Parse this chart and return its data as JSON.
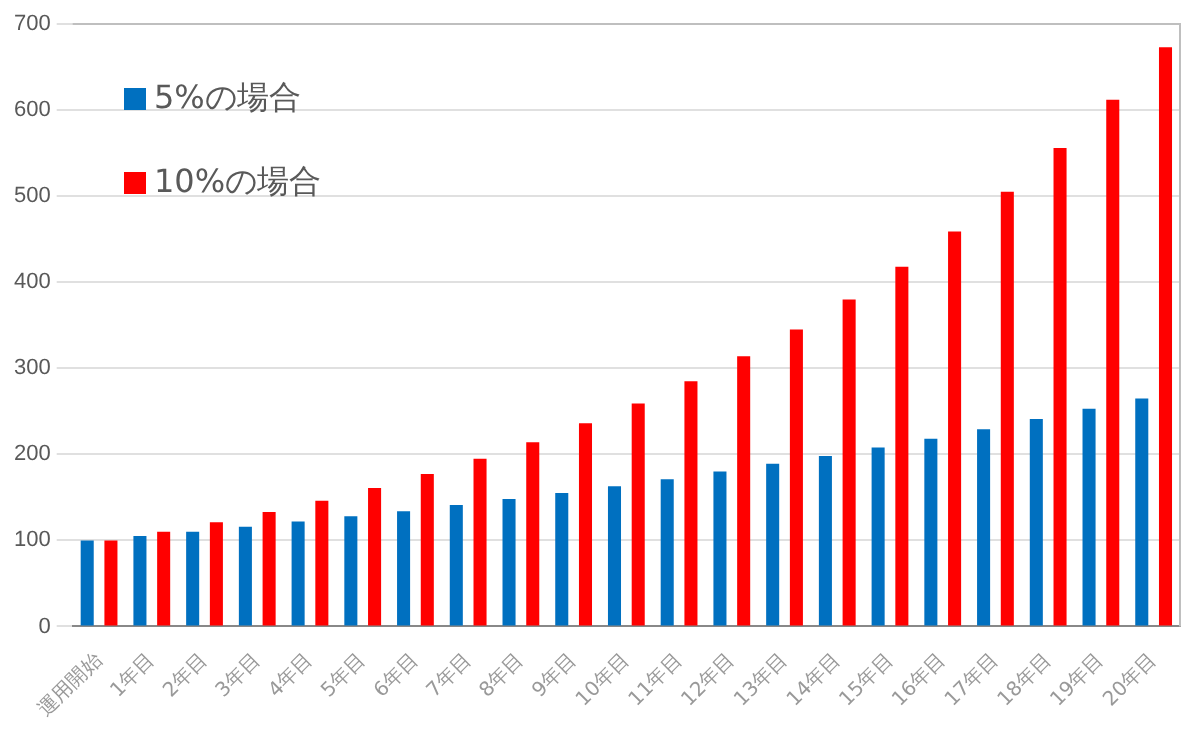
{
  "chart_data": {
    "type": "bar",
    "categories": [
      "運用開始",
      "1年目",
      "2年目",
      "3年目",
      "4年目",
      "5年目",
      "6年目",
      "7年目",
      "8年目",
      "9年目",
      "10年目",
      "11年目",
      "12年目",
      "13年目",
      "14年目",
      "15年目",
      "16年目",
      "17年目",
      "18年目",
      "19年目",
      "20年目"
    ],
    "series": [
      {
        "name": "5%の場合",
        "color": "#0070c0",
        "values": [
          100,
          105,
          110,
          116,
          122,
          128,
          134,
          141,
          148,
          155,
          163,
          171,
          180,
          189,
          198,
          208,
          218,
          229,
          241,
          253,
          265
        ]
      },
      {
        "name": "10%の場合",
        "color": "#ff0000",
        "values": [
          100,
          110,
          121,
          133,
          146,
          161,
          177,
          195,
          214,
          236,
          259,
          285,
          314,
          345,
          380,
          418,
          459,
          505,
          556,
          612,
          673
        ]
      }
    ],
    "ylim": [
      0,
      700
    ],
    "yticks": [
      0,
      100,
      200,
      300,
      400,
      500,
      600,
      700
    ],
    "grid": "y",
    "legend": "top left"
  }
}
